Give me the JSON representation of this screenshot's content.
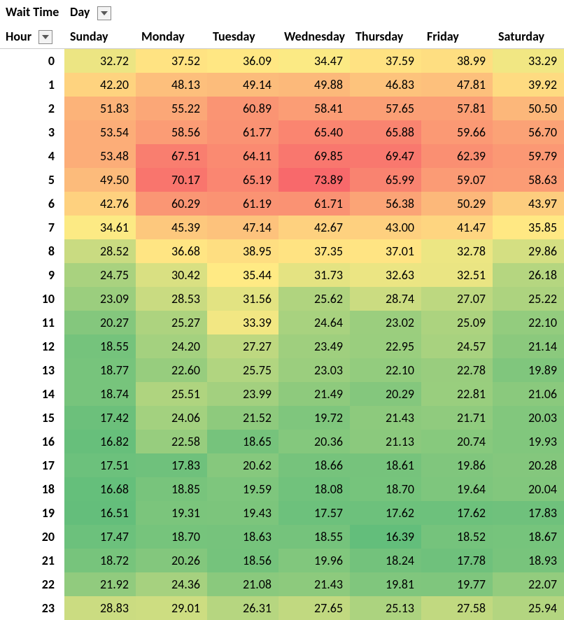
{
  "header": {
    "measure_label": "Wait Time",
    "col_field_label": "Day",
    "row_field_label": "Hour"
  },
  "heat": {
    "type": "heatmap",
    "columns": [
      "Sunday",
      "Monday",
      "Tuesday",
      "Wednesday",
      "Thursday",
      "Friday",
      "Saturday"
    ],
    "hours": [
      "0",
      "1",
      "2",
      "3",
      "4",
      "5",
      "6",
      "7",
      "8",
      "9",
      "10",
      "11",
      "12",
      "13",
      "14",
      "15",
      "16",
      "17",
      "18",
      "19",
      "20",
      "21",
      "22",
      "23"
    ],
    "rows": [
      [
        32.72,
        37.52,
        36.09,
        34.47,
        37.59,
        38.99,
        33.29
      ],
      [
        42.2,
        48.13,
        49.14,
        49.88,
        46.83,
        47.81,
        39.92
      ],
      [
        51.83,
        55.22,
        60.89,
        58.41,
        57.65,
        57.81,
        50.5
      ],
      [
        53.54,
        58.56,
        61.77,
        65.4,
        65.88,
        59.66,
        56.7
      ],
      [
        53.48,
        67.51,
        64.11,
        69.85,
        69.47,
        62.39,
        59.79
      ],
      [
        49.5,
        70.17,
        65.19,
        73.89,
        65.99,
        59.07,
        58.63
      ],
      [
        42.76,
        60.29,
        61.19,
        61.71,
        56.38,
        50.29,
        43.97
      ],
      [
        34.61,
        45.39,
        47.14,
        42.67,
        43.0,
        41.47,
        35.85
      ],
      [
        28.52,
        36.68,
        38.95,
        37.35,
        37.01,
        32.78,
        29.86
      ],
      [
        24.75,
        30.42,
        35.44,
        31.73,
        32.63,
        32.51,
        26.18
      ],
      [
        23.09,
        28.53,
        31.56,
        25.62,
        28.74,
        27.07,
        25.22
      ],
      [
        20.27,
        25.27,
        33.39,
        24.64,
        23.02,
        25.09,
        22.1
      ],
      [
        18.55,
        24.2,
        27.27,
        23.49,
        22.95,
        24.57,
        21.14
      ],
      [
        18.77,
        22.6,
        25.75,
        23.03,
        22.1,
        22.78,
        19.89
      ],
      [
        18.74,
        25.51,
        23.99,
        21.49,
        20.29,
        22.81,
        21.06
      ],
      [
        17.42,
        24.06,
        21.52,
        19.72,
        21.43,
        21.71,
        20.03
      ],
      [
        16.82,
        22.58,
        18.65,
        20.36,
        21.13,
        20.74,
        19.93
      ],
      [
        17.51,
        17.83,
        20.62,
        18.66,
        18.61,
        19.86,
        20.28
      ],
      [
        16.68,
        18.85,
        19.59,
        18.08,
        18.7,
        19.64,
        20.04
      ],
      [
        16.51,
        19.31,
        19.43,
        17.57,
        17.62,
        17.62,
        17.83
      ],
      [
        17.47,
        18.7,
        18.63,
        18.55,
        16.39,
        18.52,
        18.67
      ],
      [
        18.72,
        20.26,
        18.56,
        19.96,
        18.24,
        17.78,
        18.93
      ],
      [
        21.92,
        24.36,
        21.08,
        21.43,
        19.81,
        19.77,
        22.07
      ],
      [
        28.83,
        29.01,
        26.31,
        27.65,
        25.13,
        27.58,
        25.94
      ]
    ],
    "scale": {
      "min_color": "#63be7b",
      "mid_color": "#ffeb84",
      "max_color": "#f8696b",
      "min_value": 16.39,
      "mid_value": 35.0,
      "max_value": 73.89
    },
    "cell_fontsize": 18,
    "header_fontsize": 18,
    "number_format": "0.00"
  },
  "style": {
    "dropdown_border": "#8a8a8a",
    "dropdown_bg": "#f3f3f3",
    "dropdown_arrow": "#595959"
  }
}
